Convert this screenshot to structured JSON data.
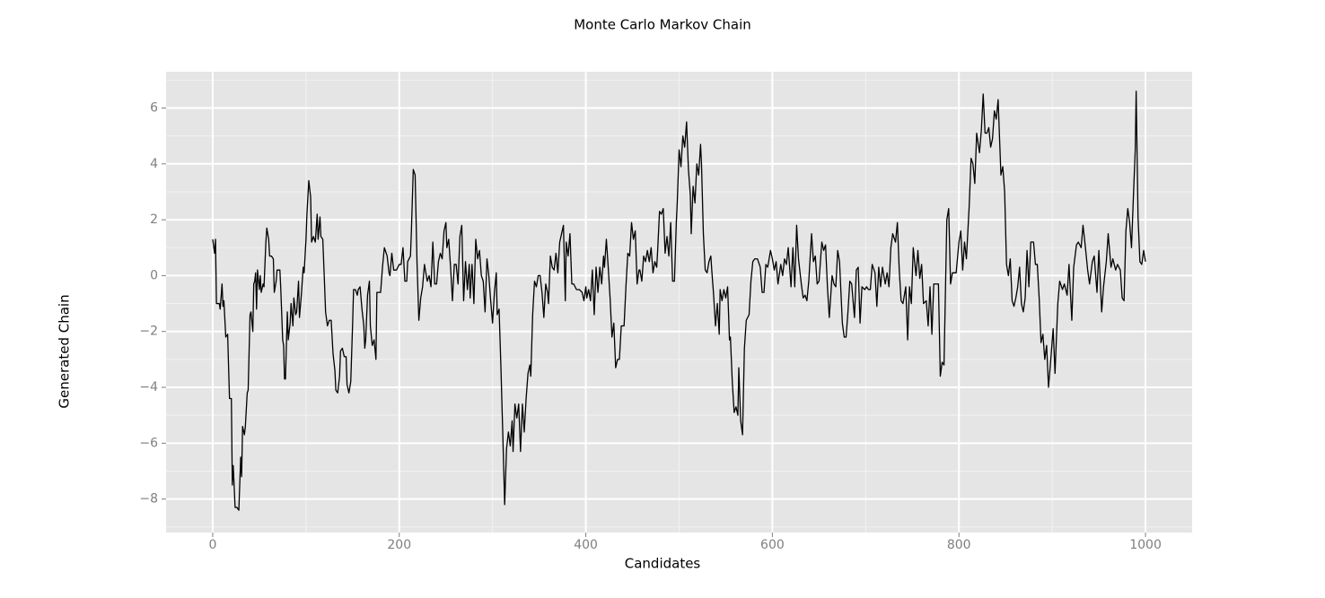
{
  "chart_data": {
    "type": "line",
    "title": "Monte Carlo Markov Chain",
    "xlabel": "Candidates",
    "ylabel": "Generated Chain",
    "xlim": [
      -50,
      1050
    ],
    "ylim": [
      -9.2,
      7.3
    ],
    "xticks": [
      0,
      200,
      400,
      600,
      800,
      1000
    ],
    "yticks": [
      {
        "value": -8,
        "label": "−8"
      },
      {
        "value": -6,
        "label": "−6"
      },
      {
        "value": -4,
        "label": "−4"
      },
      {
        "value": -2,
        "label": "−2"
      },
      0,
      2,
      4,
      6
    ],
    "grid": true,
    "panel_color": "#e5e5e5",
    "x": [
      0,
      2,
      3,
      4,
      7,
      8,
      10,
      11,
      12,
      14,
      16,
      18,
      20,
      21,
      22,
      24,
      26,
      28,
      30,
      31,
      32,
      34,
      35,
      37,
      38,
      40,
      41,
      43,
      44,
      45,
      46,
      47,
      48,
      50,
      51,
      52,
      54,
      55,
      57,
      58,
      60,
      61,
      63,
      65,
      66,
      68,
      69,
      72,
      73,
      75,
      76,
      77,
      78,
      80,
      81,
      83,
      84,
      86,
      87,
      89,
      90,
      92,
      93,
      95,
      97,
      98,
      100,
      101,
      103,
      105,
      106,
      108,
      110,
      112,
      113,
      115,
      116,
      118,
      120,
      121,
      123,
      125,
      127,
      129,
      131,
      132,
      134,
      136,
      137,
      139,
      141,
      143,
      144,
      146,
      148,
      150,
      151,
      153,
      155,
      156,
      158,
      160,
      162,
      163,
      164,
      166,
      168,
      169,
      171,
      173,
      175,
      176,
      180,
      182,
      184,
      187,
      189,
      190,
      192,
      194,
      195,
      197,
      200,
      202,
      204,
      206,
      208,
      209,
      212,
      213,
      215,
      217,
      219,
      221,
      223,
      225,
      227,
      228,
      230,
      232,
      234,
      236,
      238,
      240,
      242,
      244,
      246,
      248,
      250,
      251,
      253,
      255,
      257,
      259,
      261,
      263,
      265,
      267,
      269,
      271,
      273,
      275,
      276,
      278,
      280,
      282,
      284,
      286,
      288,
      290,
      292,
      294,
      296,
      298,
      300,
      302,
      304,
      305,
      307,
      309,
      311,
      313,
      315,
      317,
      319,
      321,
      322,
      324,
      326,
      328,
      330,
      332,
      334,
      336,
      338,
      340,
      341,
      343,
      345,
      347,
      349,
      351,
      353,
      355,
      357,
      359,
      360,
      362,
      364,
      366,
      368,
      370,
      372,
      374,
      376,
      378,
      379,
      381,
      383,
      385,
      387,
      390,
      393,
      396,
      398,
      400,
      401,
      403,
      405,
      407,
      409,
      411,
      413,
      415,
      417,
      419,
      420,
      422,
      424,
      426,
      428,
      430,
      432,
      434,
      436,
      438,
      439,
      441,
      443,
      445,
      447,
      449,
      451,
      453,
      455,
      457,
      458,
      460,
      462,
      464,
      466,
      468,
      470,
      472,
      474,
      476,
      477,
      479,
      481,
      483,
      485,
      487,
      489,
      491,
      493,
      495,
      497,
      498,
      500,
      502,
      504,
      506,
      508,
      510,
      512,
      513,
      515,
      517,
      519,
      521,
      523,
      524,
      526,
      528,
      530,
      532,
      534,
      535,
      537,
      539,
      541,
      543,
      544,
      546,
      548,
      550,
      552,
      554,
      555,
      557,
      559,
      561,
      563,
      564,
      566,
      568,
      570,
      572,
      575,
      577,
      579,
      581,
      584,
      587,
      589,
      591,
      593,
      595,
      598,
      600,
      602,
      604,
      606,
      609,
      611,
      613,
      615,
      617,
      620,
      622,
      624,
      626,
      628,
      631,
      633,
      635,
      637,
      639,
      642,
      644,
      646,
      648,
      650,
      653,
      655,
      657,
      659,
      661,
      664,
      666,
      668,
      670,
      672,
      675,
      677,
      679,
      681,
      683,
      685,
      688,
      690,
      692,
      694,
      696,
      699,
      701,
      703,
      705,
      707,
      710,
      712,
      714,
      716,
      718,
      721,
      723,
      725,
      727,
      729,
      732,
      734,
      736,
      738,
      740,
      743,
      745,
      747,
      749,
      751,
      754,
      756,
      758,
      760,
      762,
      765,
      767,
      769,
      771,
      773,
      776,
      778,
      780,
      782,
      784,
      787,
      789,
      791,
      793,
      795,
      797,
      800,
      802,
      804,
      806,
      808,
      811,
      813,
      815,
      817,
      819,
      822,
      824,
      826,
      828,
      830,
      832,
      834,
      836,
      838,
      840,
      842,
      845,
      847,
      849,
      851,
      853,
      855,
      857,
      859,
      861,
      863,
      865,
      867,
      869,
      871,
      873,
      875,
      877,
      880,
      882,
      884,
      886,
      888,
      890,
      892,
      894,
      896,
      898,
      901,
      903,
      906,
      908,
      911,
      913,
      916,
      918,
      921,
      923,
      926,
      928,
      931,
      933,
      935,
      938,
      940,
      943,
      945,
      948,
      950,
      953,
      955,
      958,
      960,
      963,
      965,
      968,
      970,
      973,
      975,
      977,
      979,
      981,
      983,
      985,
      987,
      989,
      990,
      992,
      994,
      996,
      998,
      1000
    ],
    "series": [
      {
        "color": "#000000",
        "values": [
          1.3,
          0.8,
          1.3,
          -1.0,
          -1.0,
          -1.2,
          -0.3,
          -1.1,
          -0.9,
          -2.2,
          -2.1,
          -4.4,
          -4.4,
          -7.5,
          -6.8,
          -8.3,
          -8.3,
          -8.4,
          -6.5,
          -7.2,
          -5.4,
          -5.7,
          -5.4,
          -4.2,
          -4.1,
          -1.4,
          -1.3,
          -2.0,
          -0.3,
          -0.2,
          0.1,
          -1.2,
          0.2,
          -0.5,
          0.0,
          -0.6,
          -0.3,
          -0.4,
          1.2,
          1.7,
          1.3,
          0.7,
          0.7,
          0.6,
          -0.6,
          -0.2,
          0.2,
          0.2,
          -0.5,
          -2.3,
          -2.5,
          -3.7,
          -3.7,
          -1.3,
          -2.3,
          -1.7,
          -1.0,
          -1.8,
          -0.8,
          -1.4,
          -1.3,
          -0.2,
          -1.5,
          -0.7,
          0.3,
          0.1,
          1.3,
          2.2,
          3.4,
          2.8,
          1.2,
          1.4,
          1.2,
          2.2,
          1.3,
          2.1,
          1.4,
          1.3,
          -0.4,
          -1.3,
          -1.8,
          -1.6,
          -1.6,
          -2.8,
          -3.4,
          -4.1,
          -4.2,
          -3.6,
          -2.7,
          -2.6,
          -2.9,
          -2.9,
          -3.9,
          -4.2,
          -3.8,
          -1.7,
          -0.5,
          -0.5,
          -0.7,
          -0.5,
          -0.4,
          -1.2,
          -1.8,
          -2.6,
          -2.3,
          -0.7,
          -0.2,
          -1.8,
          -2.5,
          -2.3,
          -3.0,
          -0.6,
          -0.6,
          0.3,
          1.0,
          0.7,
          0.1,
          0.0,
          0.8,
          0.2,
          0.2,
          0.2,
          0.4,
          0.4,
          1.0,
          -0.2,
          -0.2,
          0.5,
          0.7,
          1.6,
          3.8,
          3.6,
          0.5,
          -1.6,
          -0.8,
          -0.4,
          0.4,
          0.2,
          -0.2,
          0.0,
          -0.4,
          1.2,
          -0.3,
          -0.3,
          0.5,
          0.8,
          0.6,
          1.6,
          1.9,
          1.0,
          1.3,
          0.3,
          -0.9,
          0.4,
          0.4,
          -0.3,
          1.4,
          1.8,
          -0.9,
          0.5,
          -0.5,
          0.4,
          -0.8,
          0.4,
          -1.0,
          1.3,
          0.6,
          0.9,
          0.0,
          -0.2,
          -1.3,
          0.6,
          0.0,
          -0.9,
          -1.7,
          -0.6,
          0.1,
          -1.4,
          -1.2,
          -3.3,
          -5.7,
          -8.2,
          -6.2,
          -5.6,
          -6.1,
          -5.2,
          -6.3,
          -4.6,
          -5.1,
          -4.6,
          -6.3,
          -4.6,
          -5.6,
          -4.4,
          -3.5,
          -3.2,
          -3.6,
          -1.4,
          -0.2,
          -0.4,
          0.0,
          0.0,
          -0.6,
          -1.5,
          -0.3,
          -0.6,
          -1.0,
          0.7,
          0.3,
          0.2,
          0.8,
          0.1,
          1.2,
          1.5,
          1.8,
          -0.9,
          1.2,
          0.7,
          1.5,
          -0.3,
          -0.3,
          -0.5,
          -0.5,
          -0.6,
          -0.9,
          -0.4,
          -0.8,
          -0.5,
          -0.9,
          0.2,
          -1.4,
          0.3,
          -0.6,
          0.3,
          -0.3,
          0.7,
          0.3,
          1.3,
          0.3,
          -0.8,
          -2.2,
          -1.7,
          -3.3,
          -3.0,
          -3.0,
          -1.8,
          -1.8,
          -1.8,
          -0.4,
          0.8,
          0.7,
          1.9,
          1.3,
          1.6,
          -0.3,
          0.2,
          0.2,
          -0.2,
          0.7,
          0.5,
          0.9,
          0.5,
          1.0,
          0.1,
          0.5,
          0.3,
          0.9,
          2.3,
          2.2,
          2.4,
          0.8,
          1.4,
          0.7,
          1.9,
          -0.2,
          -0.2,
          1.9,
          2.6,
          4.5,
          3.9,
          5.0,
          4.6,
          5.5,
          3.8,
          2.9,
          1.5,
          3.2,
          2.6,
          4.0,
          3.6,
          4.7,
          4.0,
          1.5,
          0.2,
          0.1,
          0.5,
          0.7,
          0.2,
          -0.7,
          -1.8,
          -1.0,
          -2.1,
          -0.5,
          -0.9,
          -0.5,
          -0.8,
          -0.4,
          -2.3,
          -2.2,
          -3.8,
          -4.9,
          -4.7,
          -5.0,
          -3.3,
          -5.2,
          -5.7,
          -2.6,
          -1.6,
          -1.4,
          -0.2,
          0.5,
          0.6,
          0.6,
          0.3,
          -0.6,
          -0.6,
          0.4,
          0.3,
          0.9,
          0.6,
          0.2,
          0.5,
          -0.3,
          0.4,
          0.0,
          0.6,
          0.4,
          1.0,
          -0.4,
          1.0,
          -0.4,
          1.8,
          0.6,
          -0.3,
          -0.8,
          -0.7,
          -0.9,
          -0.2,
          1.5,
          0.5,
          0.7,
          -0.3,
          -0.2,
          1.2,
          0.9,
          1.1,
          -0.4,
          -1.5,
          0.0,
          -0.3,
          -0.4,
          0.9,
          0.5,
          -1.7,
          -2.2,
          -2.2,
          -1.3,
          -0.2,
          -0.3,
          -1.5,
          0.2,
          0.3,
          -1.7,
          -0.4,
          -0.5,
          -0.4,
          -0.5,
          -0.5,
          0.4,
          0.1,
          -1.1,
          0.3,
          -0.4,
          0.3,
          -0.3,
          0.1,
          -0.4,
          1.0,
          1.5,
          1.2,
          1.9,
          0.2,
          -0.9,
          -1.0,
          -0.4,
          -2.3,
          -0.4,
          -1.0,
          1.0,
          0.0,
          0.9,
          -0.1,
          0.4,
          -1.0,
          -0.9,
          -1.8,
          -0.4,
          -2.1,
          -0.3,
          -0.3,
          -0.3,
          -3.6,
          -3.1,
          -3.2,
          2.0,
          2.4,
          -0.3,
          0.1,
          0.1,
          0.1,
          1.2,
          1.6,
          0.2,
          1.2,
          0.6,
          2.5,
          4.2,
          4.0,
          3.3,
          5.1,
          4.4,
          5.2,
          6.5,
          5.1,
          5.1,
          5.3,
          4.6,
          4.9,
          5.9,
          5.6,
          6.3,
          3.6,
          3.9,
          3.0,
          0.4,
          0.0,
          0.6,
          -0.9,
          -1.1,
          -0.8,
          -0.4,
          0.3,
          -1.0,
          -1.3,
          -0.8,
          0.9,
          -0.4,
          1.2,
          1.2,
          0.4,
          0.4,
          -0.8,
          -2.4,
          -2.1,
          -3.0,
          -2.5,
          -4.0,
          -3.2,
          -1.9,
          -3.5,
          -1.0,
          -0.2,
          -0.5,
          -0.3,
          -0.7,
          0.4,
          -1.6,
          0.3,
          1.1,
          1.2,
          1.0,
          1.8,
          1.2,
          0.2,
          -0.3,
          0.5,
          0.7,
          -0.6,
          0.9,
          -1.3,
          -0.4,
          0.5,
          1.5,
          0.3,
          0.6,
          0.2,
          0.4,
          0.2,
          -0.8,
          -0.9,
          1.6,
          2.4,
          1.9,
          1.0,
          2.8,
          4.5,
          6.6,
          2.1,
          0.5,
          0.4,
          0.9,
          0.5
        ]
      }
    ]
  }
}
